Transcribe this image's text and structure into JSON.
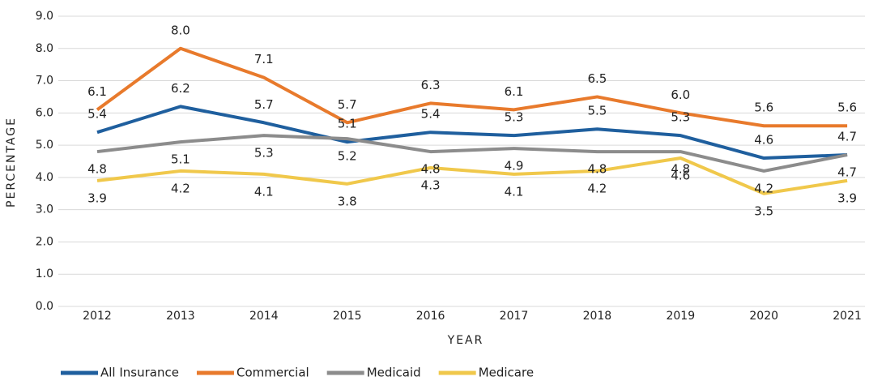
{
  "chart_data": {
    "type": "line",
    "x_label": "YEAR",
    "y_label": "PERCENTAGE",
    "categories": [
      "2012",
      "2013",
      "2014",
      "2015",
      "2016",
      "2017",
      "2018",
      "2019",
      "2020",
      "2021"
    ],
    "series": [
      {
        "name": "All Insurance",
        "color": "#1f5f9e",
        "values": [
          5.4,
          6.2,
          5.7,
          5.1,
          5.4,
          5.3,
          5.5,
          5.3,
          4.6,
          4.7
        ],
        "value_labels": [
          "5.4",
          "6.2",
          "5.7",
          "5.1",
          "5.4",
          "5.3",
          "5.5",
          "5.3",
          "4.6",
          "4.7"
        ]
      },
      {
        "name": "Commercial",
        "color": "#e87a2c",
        "values": [
          6.1,
          8,
          7.1,
          5.7,
          6.3,
          6.1,
          6.5,
          6,
          5.6,
          5.6
        ],
        "value_labels": [
          "6.1",
          "8.0",
          "7.1",
          "5.7",
          "6.3",
          "6.1",
          "6.5",
          "6.0",
          "5.6",
          "5.6"
        ]
      },
      {
        "name": "Medicaid",
        "color": "#8c8c8c",
        "values": [
          4.8,
          5.1,
          5.3,
          5.2,
          4.8,
          4.9,
          4.8,
          4.8,
          4.2,
          4.7
        ],
        "value_labels": [
          "4.8",
          "5.1",
          "5.3",
          "5.2",
          "4.8",
          "4.9",
          "4.8",
          "4.8",
          "4.2",
          "4.7"
        ]
      },
      {
        "name": "Medicare",
        "color": "#f0c84b",
        "values": [
          3.9,
          4.2,
          4.1,
          3.8,
          4.3,
          4.1,
          4.2,
          4.6,
          3.5,
          3.9
        ],
        "value_labels": [
          "3.9",
          "4.2",
          "4.1",
          "3.8",
          "4.3",
          "4.1",
          "4.2",
          "4.6",
          "3.5",
          "3.9"
        ]
      }
    ],
    "ylim": [
      0,
      9
    ],
    "yticks": [
      {
        "value": 0,
        "label": "0.0"
      },
      {
        "value": 1,
        "label": "1.0"
      },
      {
        "value": 2,
        "label": "2.0"
      },
      {
        "value": 3,
        "label": "3.0"
      },
      {
        "value": 4,
        "label": "4.0"
      },
      {
        "value": 5,
        "label": "5.0"
      },
      {
        "value": 6,
        "label": "6.0"
      },
      {
        "value": 7,
        "label": "7.0"
      },
      {
        "value": 8,
        "label": "8.0"
      },
      {
        "value": 9,
        "label": "9.0"
      }
    ],
    "grid": true,
    "legend": "bottom"
  }
}
